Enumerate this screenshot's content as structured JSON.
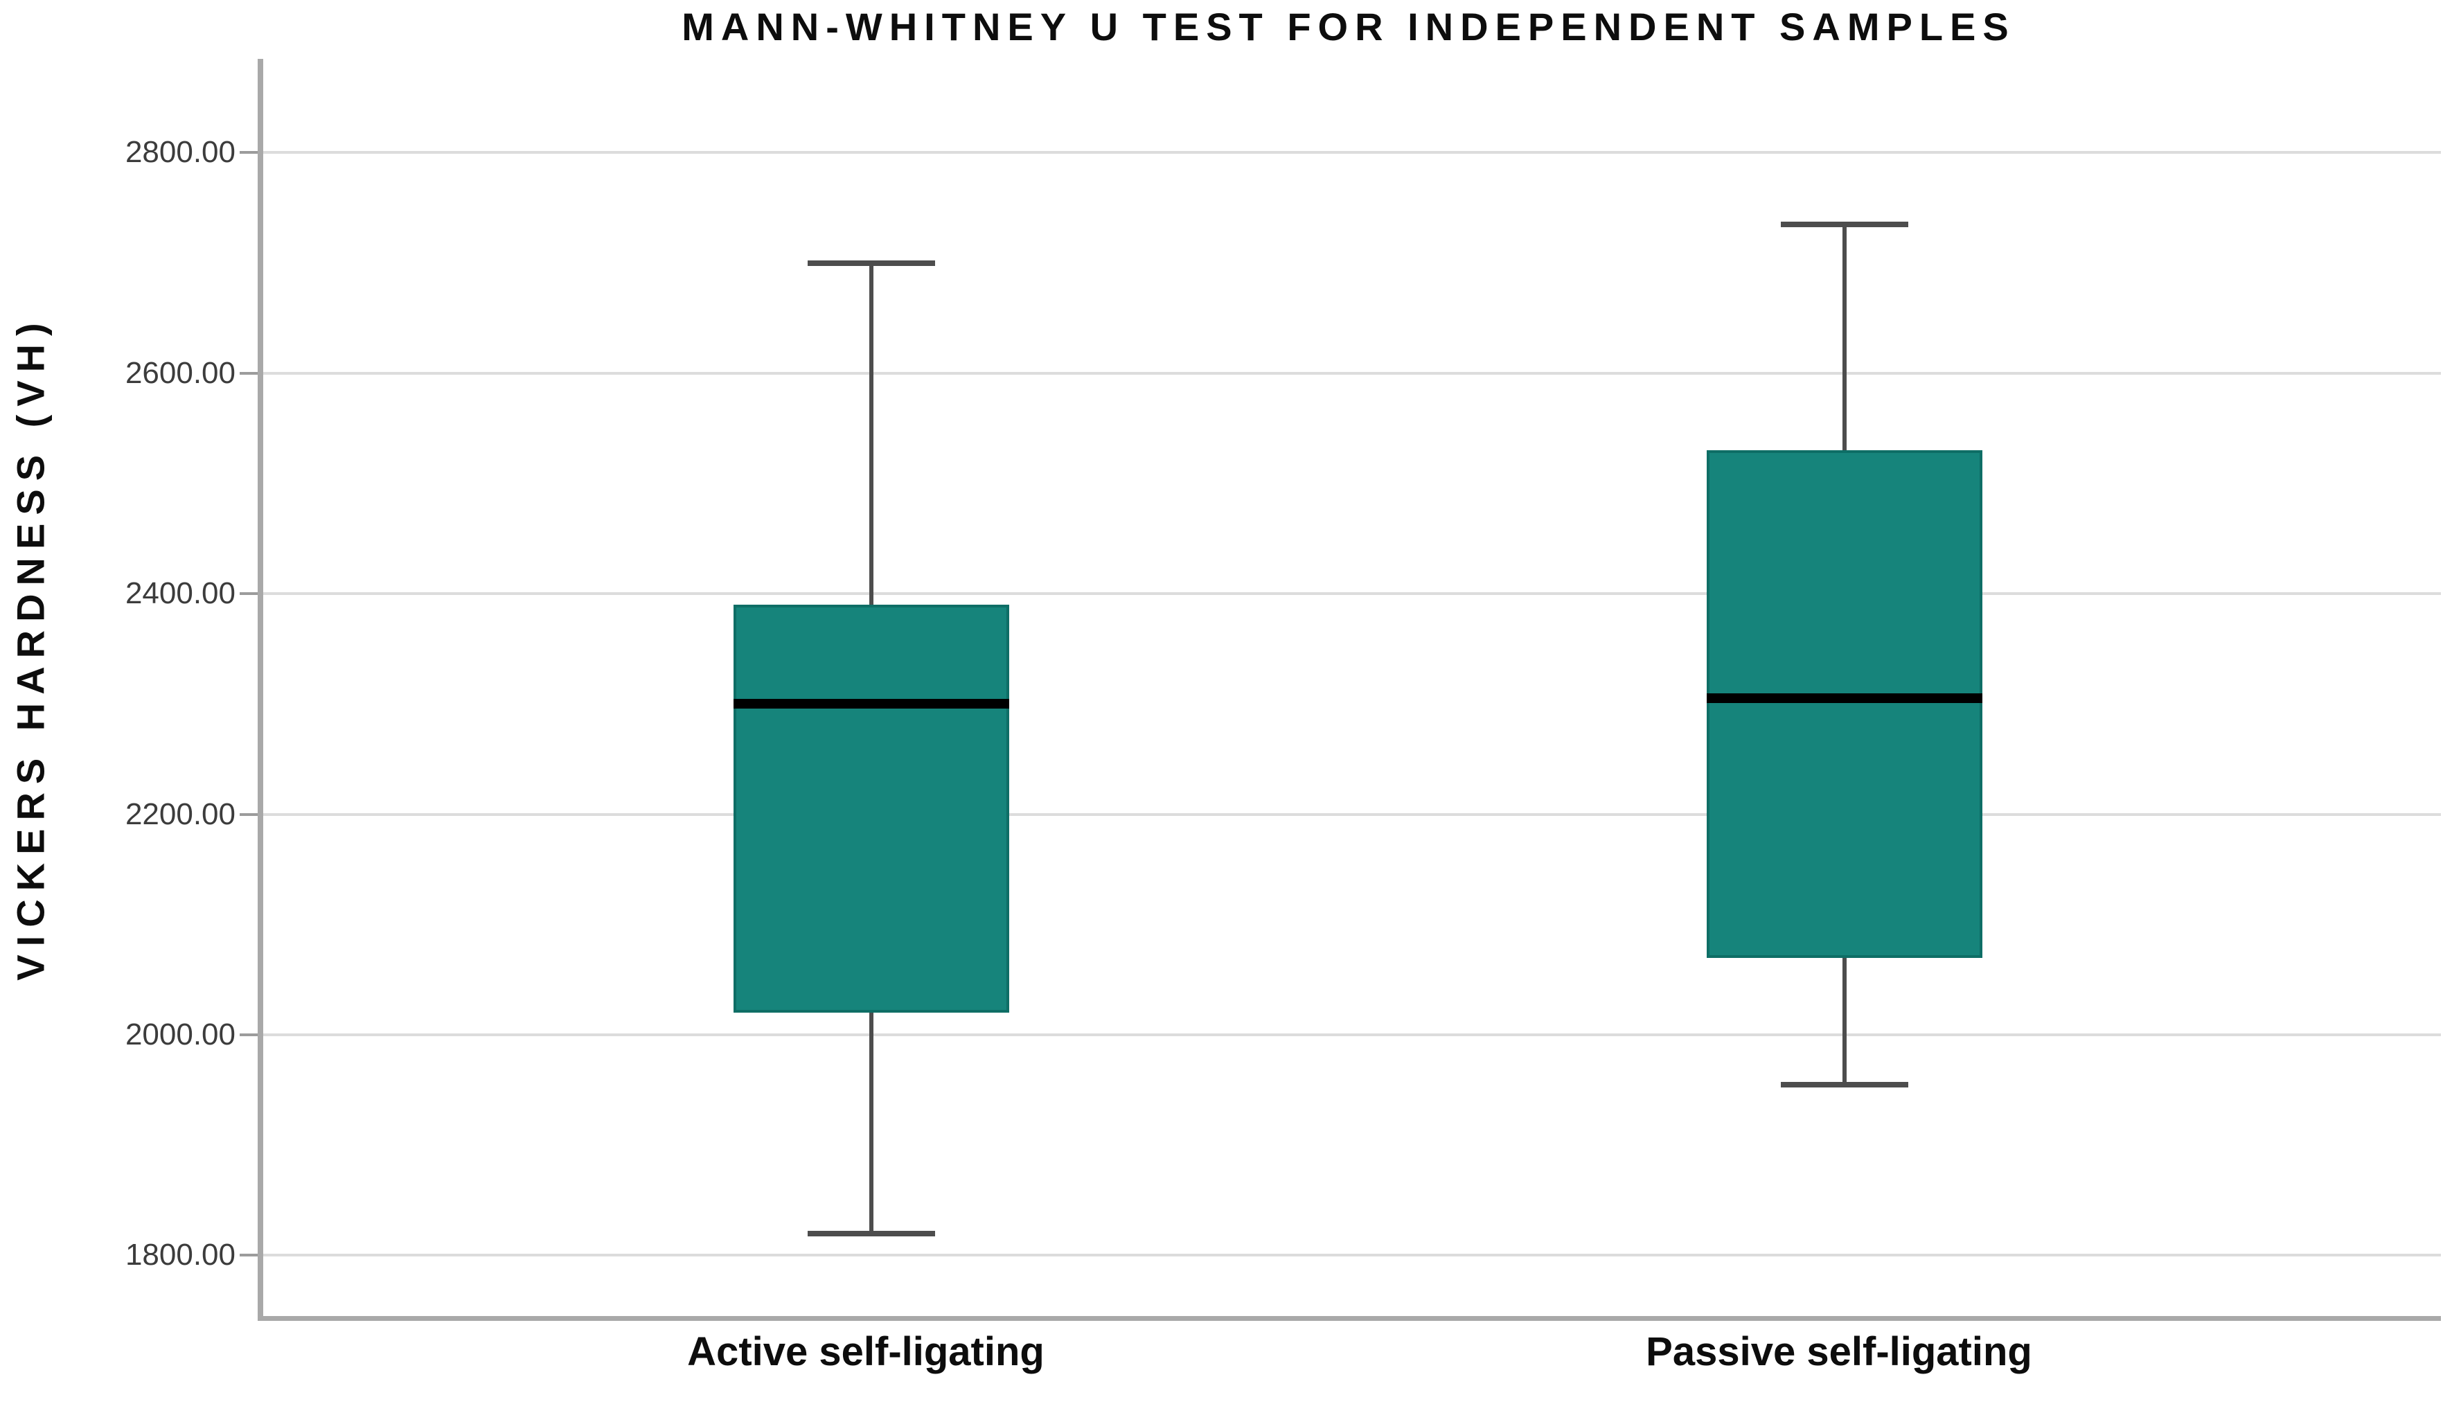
{
  "page": {
    "background": "#ffffff"
  },
  "chart_data": {
    "type": "box",
    "title": "MANN-WHITNEY U TEST FOR INDEPENDENT SAMPLES",
    "ylabel": "VICKERS HARDNESS (VH)",
    "xlabel": "",
    "categories": [
      "Active self-ligating",
      "Passive self-ligating"
    ],
    "series": [
      {
        "name": "Active self-ligating",
        "min": 1820,
        "q1": 2020,
        "median": 2300,
        "q3": 2390,
        "max": 2700
      },
      {
        "name": "Passive self-ligating",
        "min": 1955,
        "q1": 2070,
        "median": 2305,
        "q3": 2530,
        "max": 2735
      }
    ],
    "ylim": [
      1745,
      2885
    ],
    "y_ticks": [
      {
        "value": 2800,
        "label": "2800.00"
      },
      {
        "value": 2600,
        "label": "2600.00"
      },
      {
        "value": 2400,
        "label": "2400.00"
      },
      {
        "value": 2200,
        "label": "2200.00"
      },
      {
        "value": 2000,
        "label": "2000.00"
      },
      {
        "value": 1800,
        "label": "1800.00"
      }
    ],
    "grid": "horizontal",
    "legend": "none",
    "colors": {
      "box_fill": "#16847b",
      "box_border": "#0e6e66",
      "median": "#000000",
      "whisker": "#4d4d4d",
      "gridline": "#dcdcdc",
      "axis_line": "#a9a9a9",
      "tick": "#9c9c9c",
      "tick_label": "#3c3c3c",
      "text": "#0d0d0d"
    }
  }
}
